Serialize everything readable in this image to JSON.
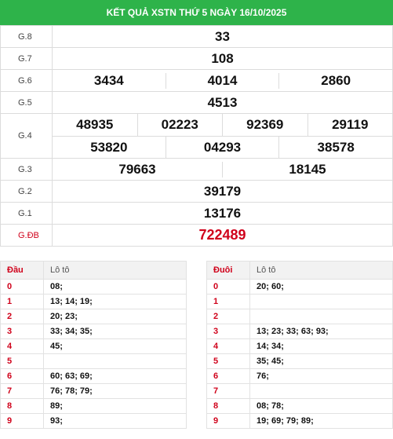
{
  "title": "KẾT QUẢ XSTN THỨ 5 NGÀY 16/10/2025",
  "prizes": [
    {
      "label": "G.8",
      "values": [
        "33"
      ]
    },
    {
      "label": "G.7",
      "values": [
        "108"
      ]
    },
    {
      "label": "G.6",
      "values": [
        "3434",
        "4014",
        "2860"
      ]
    },
    {
      "label": "G.5",
      "values": [
        "4513"
      ]
    },
    {
      "label": "G.4",
      "row1": [
        "48935",
        "02223",
        "92369",
        "29119"
      ],
      "row2": [
        "53820",
        "04293",
        "38578"
      ]
    },
    {
      "label": "G.3",
      "values": [
        "79663",
        "18145"
      ]
    },
    {
      "label": "G.2",
      "values": [
        "39179"
      ]
    },
    {
      "label": "G.1",
      "values": [
        "13176"
      ]
    },
    {
      "label": "G.ĐB",
      "values": [
        "722489"
      ]
    }
  ],
  "dau": {
    "header_key": "Đầu",
    "header_val": "Lô tô",
    "rows": [
      {
        "k": "0",
        "v": "08;"
      },
      {
        "k": "1",
        "v": "13; 14; 19;"
      },
      {
        "k": "2",
        "v": "20; 23;"
      },
      {
        "k": "3",
        "v": "33; 34; 35;"
      },
      {
        "k": "4",
        "v": "45;"
      },
      {
        "k": "5",
        "v": ""
      },
      {
        "k": "6",
        "v": "60; 63; 69;"
      },
      {
        "k": "7",
        "v": "76; 78; 79;"
      },
      {
        "k": "8",
        "v": "89;"
      },
      {
        "k": "9",
        "v": "93;"
      }
    ]
  },
  "duoi": {
    "header_key": "Đuôi",
    "header_val": "Lô tô",
    "rows": [
      {
        "k": "0",
        "v": "20; 60;"
      },
      {
        "k": "1",
        "v": ""
      },
      {
        "k": "2",
        "v": ""
      },
      {
        "k": "3",
        "v": "13; 23; 33; 63; 93;"
      },
      {
        "k": "4",
        "v": "14; 34;"
      },
      {
        "k": "5",
        "v": "35; 45;"
      },
      {
        "k": "6",
        "v": "76;"
      },
      {
        "k": "7",
        "v": ""
      },
      {
        "k": "8",
        "v": "08; 78;"
      },
      {
        "k": "9",
        "v": "19; 69; 79; 89;"
      }
    ]
  }
}
